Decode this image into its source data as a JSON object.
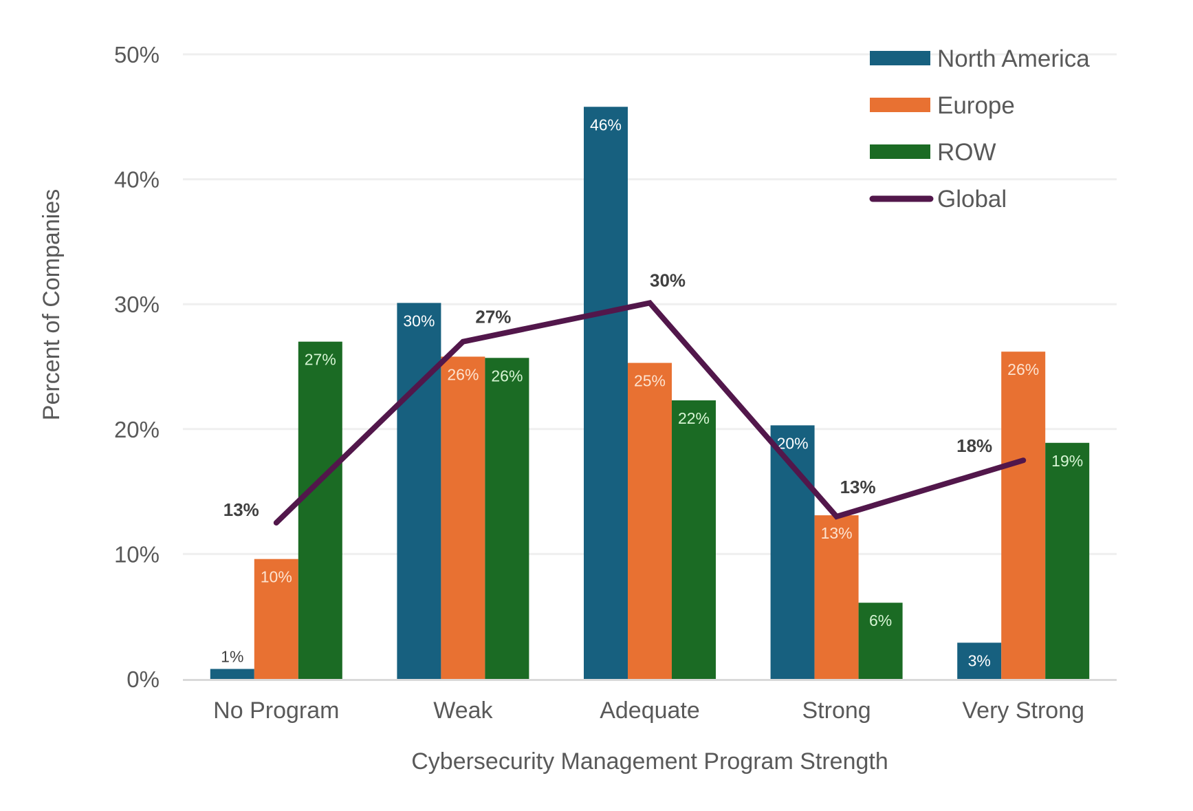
{
  "chart_data": {
    "type": "bar",
    "title": "",
    "xlabel": "Cybersecurity Management Program Strength",
    "ylabel": "Percent of Companies",
    "ylim": [
      0,
      50
    ],
    "yticks": [
      "0%",
      "10%",
      "20%",
      "30%",
      "40%",
      "50%"
    ],
    "ytick_values": [
      0,
      10,
      20,
      30,
      40,
      50
    ],
    "grid": true,
    "legend_position": "top-right",
    "categories": [
      "No Program",
      "Weak",
      "Adequate",
      "Strong",
      "Very Strong"
    ],
    "series": [
      {
        "name": "North America",
        "type": "bar",
        "color": "#17607f",
        "label_color": "#ffffff",
        "values": [
          0.8,
          30.1,
          45.8,
          20.3,
          2.9
        ],
        "labels": [
          "1%",
          "30%",
          "46%",
          "20%",
          "3%"
        ]
      },
      {
        "name": "Europe",
        "type": "bar",
        "color": "#e87132",
        "label_color": "#fde3d0",
        "values": [
          9.6,
          25.8,
          25.3,
          13.1,
          26.2
        ],
        "labels": [
          "10%",
          "26%",
          "25%",
          "13%",
          "26%"
        ]
      },
      {
        "name": "ROW",
        "type": "bar",
        "color": "#1b6b24",
        "label_color": "#d7f5d4",
        "values": [
          27.0,
          25.7,
          22.3,
          6.1,
          18.9
        ],
        "labels": [
          "27%",
          "26%",
          "22%",
          "6%",
          "19%"
        ]
      },
      {
        "name": "Global",
        "type": "line",
        "color": "#52174b",
        "values": [
          12.5,
          27.0,
          30.1,
          13.0,
          17.5
        ],
        "labels": [
          "13%",
          "27%",
          "30%",
          "13%",
          "18%"
        ]
      }
    ]
  }
}
